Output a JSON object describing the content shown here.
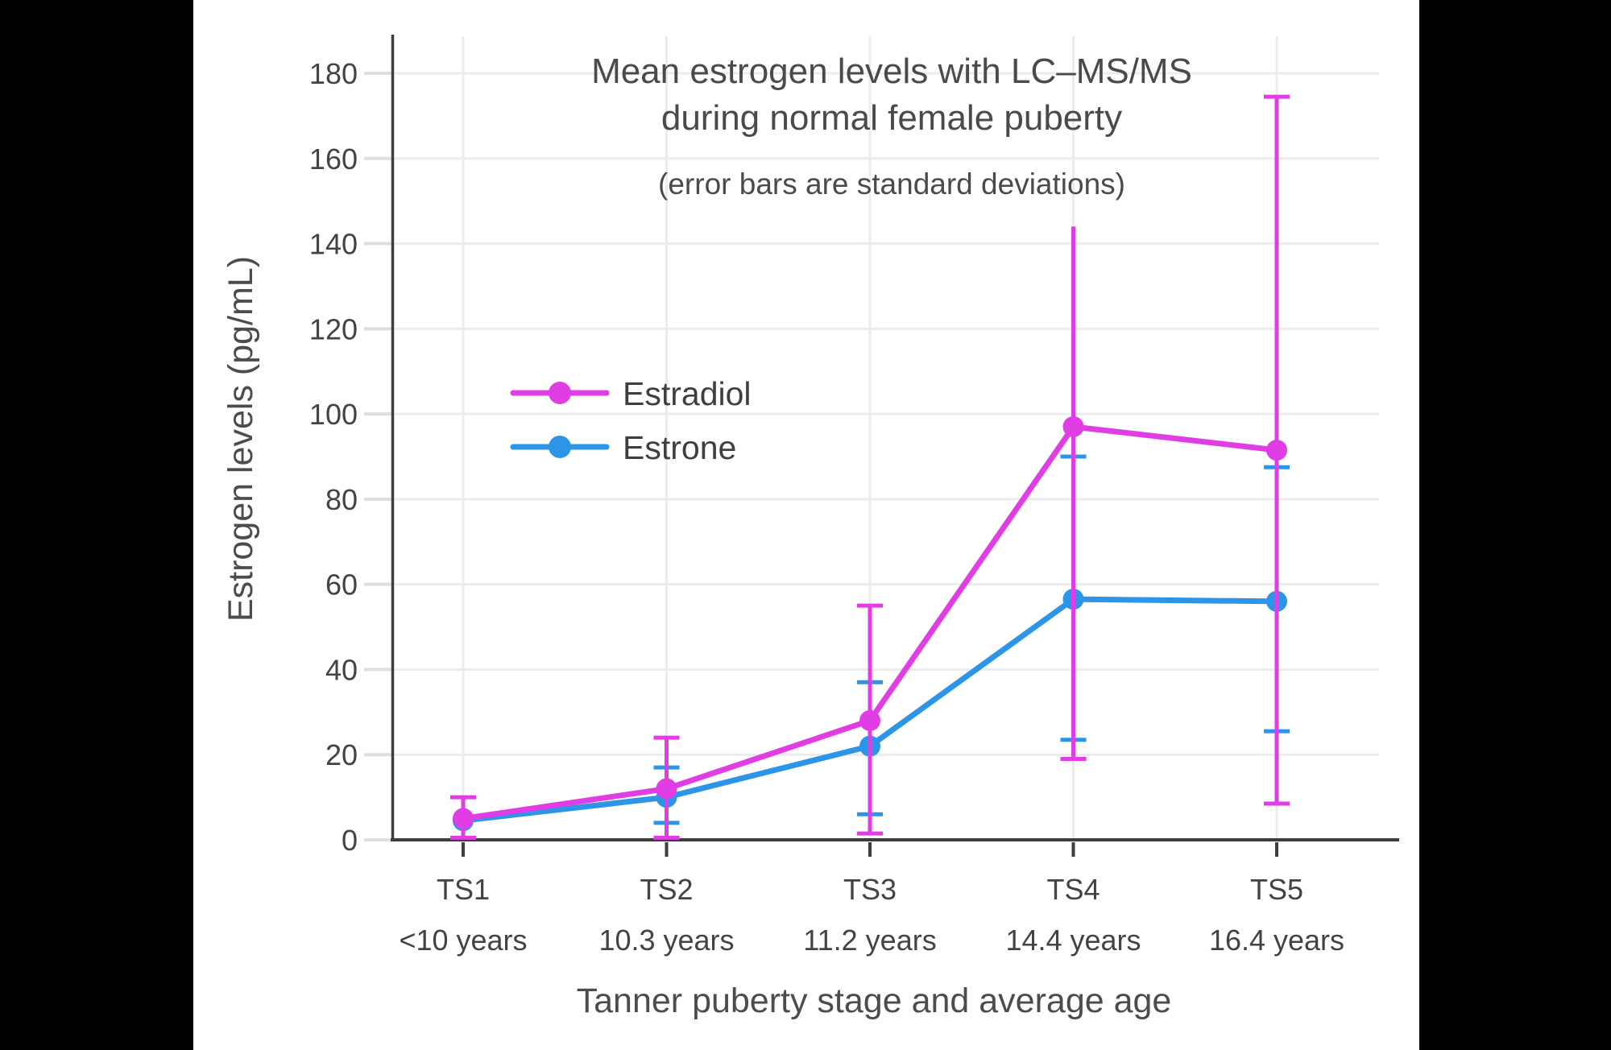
{
  "figure": {
    "background": "#000000",
    "panel_background": "#ffffff",
    "grid_color": "#ececec",
    "axis_color": "#3e3e3e",
    "text_color": "#444444"
  },
  "chart_data": {
    "type": "line",
    "title_line1": "Mean estrogen levels with LC–MS/MS",
    "title_line2": "during normal female puberty",
    "subtitle": "(error bars are standard deviations)",
    "xlabel": "Tanner puberty stage and average age",
    "ylabel": "Estrogen levels (pg/mL)",
    "x_categories": [
      "TS1",
      "TS2",
      "TS3",
      "TS4",
      "TS5"
    ],
    "x_sublabels": [
      "<10 years",
      "10.3 years",
      "11.2 years",
      "14.4 years",
      "16.4 years"
    ],
    "y_ticks": [
      0,
      20,
      40,
      60,
      80,
      100,
      120,
      140,
      160,
      180
    ],
    "ylim": [
      0,
      190
    ],
    "grid": true,
    "error_bar_meaning": "standard deviations",
    "legend": {
      "position": "inside-upper-left",
      "entries": [
        "Estradiol",
        "Estrone"
      ]
    },
    "series": [
      {
        "name": "Estradiol",
        "color": "#E13DE4",
        "values": [
          5,
          12,
          28,
          97,
          91.5
        ],
        "error_low": [
          0.5,
          0.5,
          1.5,
          19,
          8.5
        ],
        "error_high": [
          10,
          24,
          55,
          144,
          174.5
        ],
        "cap_top": [
          true,
          true,
          true,
          false,
          true
        ],
        "cap_bottom": [
          true,
          true,
          true,
          true,
          true
        ]
      },
      {
        "name": "Estrone",
        "color": "#2D95E8",
        "values": [
          4.5,
          10,
          22,
          56.5,
          56
        ],
        "error_low": [
          null,
          4,
          6,
          23.5,
          25.5
        ],
        "error_high": [
          null,
          17,
          37,
          90,
          87.5
        ],
        "cap_top": [
          false,
          true,
          true,
          true,
          true
        ],
        "cap_bottom": [
          false,
          true,
          true,
          true,
          true
        ]
      }
    ]
  }
}
